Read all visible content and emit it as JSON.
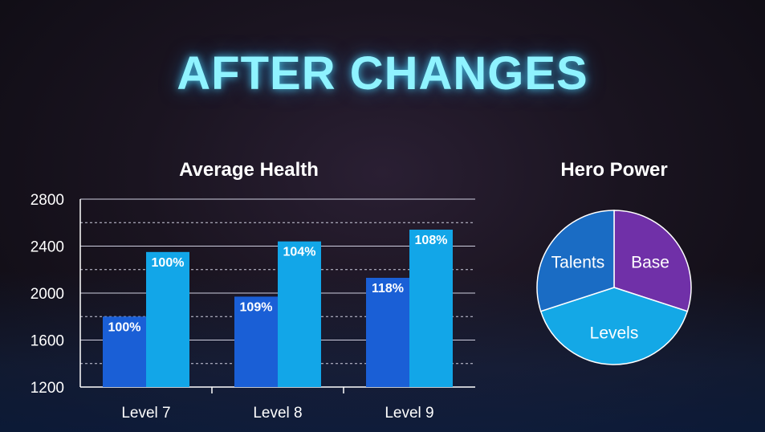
{
  "title": "AFTER CHANGES",
  "chart_data": [
    {
      "type": "bar",
      "title": "Average Health",
      "categories": [
        "Level 7",
        "Level 8",
        "Level 9"
      ],
      "series": [
        {
          "values": [
            1800,
            1970,
            2130
          ],
          "labels": [
            "100%",
            "109%",
            "118%"
          ],
          "color": "#1a5fd6"
        },
        {
          "values": [
            2350,
            2440,
            2540
          ],
          "labels": [
            "100%",
            "104%",
            "108%"
          ],
          "color": "#12a6e8"
        }
      ],
      "ylim": [
        1200,
        2800
      ],
      "yticks": [
        "1200",
        "1600",
        "2000",
        "2400",
        "2800"
      ],
      "grid": true
    },
    {
      "type": "pie",
      "title": "Hero Power",
      "slices": [
        {
          "label": "Base",
          "value": 0.3,
          "color": "#7030a8"
        },
        {
          "label": "Levels",
          "value": 0.4,
          "color": "#14a8e6"
        },
        {
          "label": "Talents",
          "value": 0.3,
          "color": "#1a6cc4"
        }
      ]
    }
  ]
}
